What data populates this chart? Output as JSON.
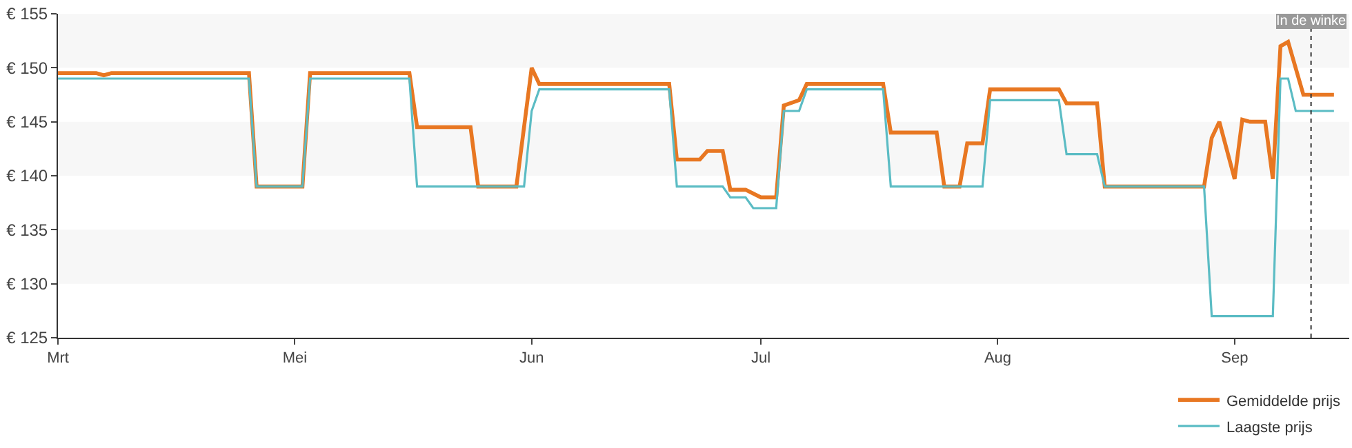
{
  "chart_data": {
    "type": "line",
    "xlim": [
      "--03-31",
      "--09-16"
    ],
    "xticks": [
      {
        "value": "--03-31",
        "label": "Mrt"
      },
      {
        "value": "--05-01",
        "label": "Mei"
      },
      {
        "value": "--06-01",
        "label": "Jun"
      },
      {
        "value": "--07-01",
        "label": "Jul"
      },
      {
        "value": "--08-01",
        "label": "Aug"
      },
      {
        "value": "--09-01",
        "label": "Sep"
      }
    ],
    "ylim": [
      125,
      155
    ],
    "yticks": [
      {
        "value": 125,
        "label": "€ 125"
      },
      {
        "value": 130,
        "label": "€ 130"
      },
      {
        "value": 135,
        "label": "€ 135"
      },
      {
        "value": 140,
        "label": "€ 140"
      },
      {
        "value": 145,
        "label": "€ 145"
      },
      {
        "value": 150,
        "label": "€ 150"
      },
      {
        "value": 155,
        "label": "€ 155"
      }
    ],
    "grid": false,
    "legend": "bottom right",
    "marker": "none",
    "line_style": "solid",
    "bands": [
      {
        "axis": "y",
        "from": 130,
        "to": 135,
        "color": "#f7f7f7"
      },
      {
        "axis": "y",
        "from": 140,
        "to": 145,
        "color": "#f7f7f7"
      },
      {
        "axis": "y",
        "from": 150,
        "to": 155,
        "color": "#f7f7f7"
      }
    ],
    "ref_lines": [
      {
        "axis": "x",
        "value": "--09-11",
        "label": "In de winke",
        "color": "#333333",
        "line_style": "dotted"
      }
    ],
    "series": [
      {
        "name": "Gemiddelde prijs",
        "color": "#e87722",
        "x": [
          "--03-31",
          "--04-05",
          "--04-06",
          "--04-07",
          "--04-25",
          "--04-26",
          "--05-02",
          "--05-03",
          "--05-16",
          "--05-17",
          "--05-24",
          "--05-25",
          "--05-30",
          "--06-01",
          "--06-02",
          "--06-19",
          "--06-20",
          "--06-23",
          "--06-24",
          "--06-26",
          "--06-27",
          "--06-29",
          "--07-01",
          "--07-03",
          "--07-04",
          "--07-06",
          "--07-07",
          "--07-17",
          "--07-18",
          "--07-24",
          "--07-25",
          "--07-27",
          "--07-28",
          "--07-30",
          "--07-31",
          "--08-09",
          "--08-10",
          "--08-14",
          "--08-15",
          "--08-28",
          "--08-29",
          "--08-30",
          "--09-01",
          "--09-02",
          "--09-03",
          "--09-05",
          "--09-06",
          "--09-07",
          "--09-08",
          "--09-10",
          "--09-14"
        ],
        "values": [
          149.5,
          149.5,
          149.3,
          149.5,
          149.5,
          139,
          139,
          149.5,
          149.5,
          144.5,
          144.5,
          139,
          139,
          150,
          148.5,
          148.5,
          141.5,
          141.5,
          142.3,
          142.3,
          138.7,
          138.7,
          138,
          138,
          146.5,
          147,
          148.5,
          148.5,
          144,
          144,
          139,
          139,
          143,
          143,
          148,
          148,
          146.7,
          146.7,
          139,
          139,
          143.5,
          145,
          139.7,
          145.2,
          145,
          145,
          139.7,
          152,
          152.4,
          147.5,
          147.5
        ]
      },
      {
        "name": "Laagste prijs",
        "color": "#5bbcc4",
        "x": [
          "--03-31",
          "--04-25",
          "--04-26",
          "--05-02",
          "--05-03",
          "--05-16",
          "--05-17",
          "--05-31",
          "--06-01",
          "--06-02",
          "--06-19",
          "--06-20",
          "--06-26",
          "--06-27",
          "--06-29",
          "--06-30",
          "--07-03",
          "--07-04",
          "--07-06",
          "--07-07",
          "--07-17",
          "--07-18",
          "--07-30",
          "--07-31",
          "--08-09",
          "--08-10",
          "--08-14",
          "--08-15",
          "--08-28",
          "--08-29",
          "--09-06",
          "--09-07",
          "--09-08",
          "--09-09",
          "--09-14"
        ],
        "values": [
          149,
          149,
          139,
          139,
          149,
          149,
          139,
          139,
          146,
          148,
          148,
          139,
          139,
          138,
          138,
          137,
          137,
          146,
          146,
          148,
          148,
          139,
          139,
          147,
          147,
          142,
          142,
          139,
          139,
          127,
          127,
          149,
          149,
          146,
          146
        ]
      }
    ]
  }
}
